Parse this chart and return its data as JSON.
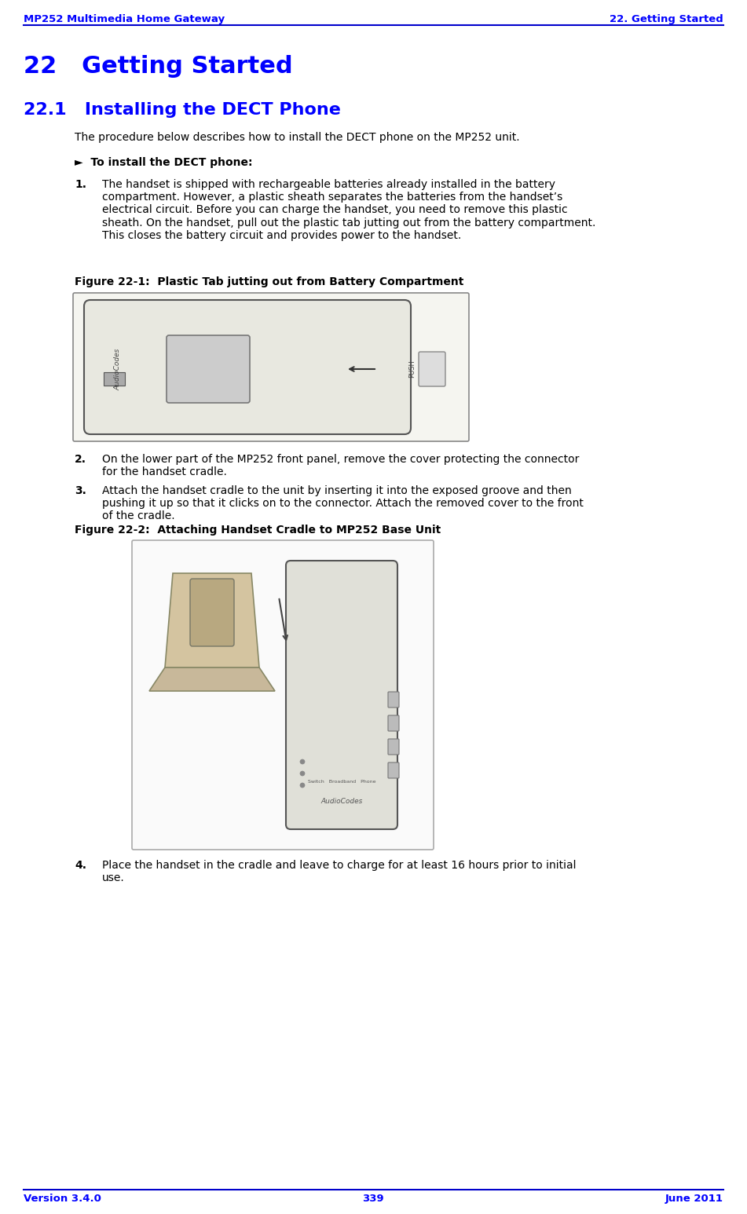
{
  "header_left": "MP252 Multimedia Home Gateway",
  "header_right": "22. Getting Started",
  "header_color": "#0000FF",
  "footer_left": "Version 3.4.0",
  "footer_center": "339",
  "footer_right": "June 2011",
  "chapter_title": "22   Getting Started",
  "section_title": "22.1   Installing the DECT Phone",
  "section_intro": "The procedure below describes how to install the DECT phone on the MP252 unit.",
  "bullet_header": "►  To install the DECT phone:",
  "step1_num": "1.",
  "step1_text": "The handset is shipped with rechargeable batteries already installed in the battery\ncompartment. However, a plastic sheath separates the batteries from the handset’s\nelectrical circuit. Before you can charge the handset, you need to remove this plastic\nsheath. On the handset, pull out the plastic tab jutting out from the battery compartment.\nThis closes the battery circuit and provides power to the handset.",
  "fig1_caption": "Figure 22-1:  Plastic Tab jutting out from Battery Compartment",
  "step2_num": "2.",
  "step2_text": "On the lower part of the MP252 front panel, remove the cover protecting the connector\nfor the handset cradle.",
  "step3_num": "3.",
  "step3_text": "Attach the handset cradle to the unit by inserting it into the exposed groove and then\npushing it up so that it clicks on to the connector. Attach the removed cover to the front\nof the cradle.",
  "fig2_caption": "Figure 22-2:  Attaching Handset Cradle to MP252 Base Unit",
  "step4_num": "4.",
  "step4_text": "Place the handset in the cradle and leave to charge for at least 16 hours prior to initial\nuse.",
  "blue": "#0000FF",
  "black": "#000000",
  "white": "#FFFFFF",
  "bg": "#FFFFFF",
  "line_color": "#0000CC"
}
